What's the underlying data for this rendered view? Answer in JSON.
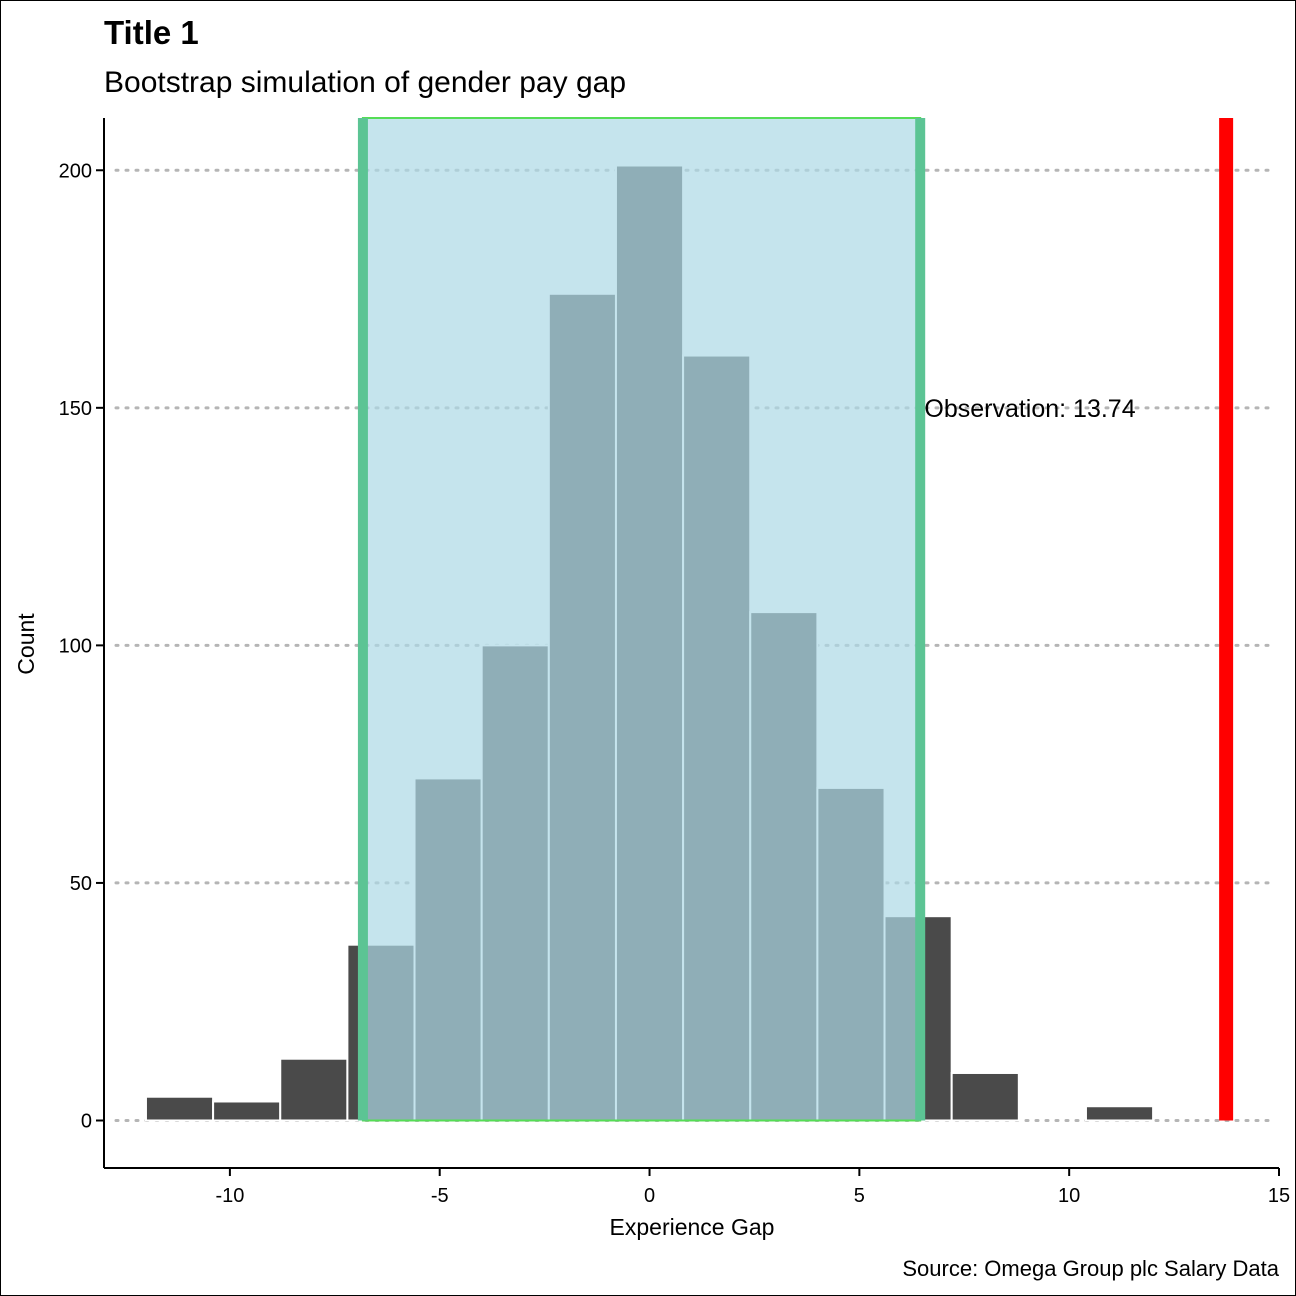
{
  "chart_data": {
    "type": "bar",
    "title": "Title 1",
    "subtitle": "Bootstrap simulation of gender pay gap",
    "xlabel": "Experience Gap",
    "ylabel": "Count",
    "caption": "Source: Omega Group plc Salary Data",
    "xlim": [
      -13.0,
      15.0
    ],
    "ylim": [
      -10,
      211
    ],
    "x_ticks": [
      -10,
      -5,
      0,
      5,
      10,
      15
    ],
    "x_tick_labels": [
      "-10",
      "-5",
      "0",
      "5",
      "10",
      "15"
    ],
    "y_ticks": [
      0,
      50,
      100,
      150,
      200
    ],
    "y_tick_labels": [
      "0",
      "50",
      "100",
      "150",
      "200"
    ],
    "grid": "horizontal dotted",
    "bin_width": 1.6,
    "bins": [
      {
        "center": -11.2,
        "count": 5
      },
      {
        "center": -9.6,
        "count": 4
      },
      {
        "center": -8.0,
        "count": 13
      },
      {
        "center": -6.4,
        "count": 37
      },
      {
        "center": -4.8,
        "count": 72
      },
      {
        "center": -3.2,
        "count": 100
      },
      {
        "center": -1.6,
        "count": 174
      },
      {
        "center": 0.0,
        "count": 201
      },
      {
        "center": 1.6,
        "count": 161
      },
      {
        "center": 3.2,
        "count": 107
      },
      {
        "center": 4.8,
        "count": 70
      },
      {
        "center": 6.4,
        "count": 43
      },
      {
        "center": 8.0,
        "count": 10
      },
      {
        "center": 9.6,
        "count": 0
      },
      {
        "center": 11.2,
        "count": 3
      }
    ],
    "confidence_interval": [
      -6.83,
      6.45
    ],
    "observation": 13.74,
    "observation_label": "Observation:  13.74",
    "colors": {
      "bar": "#4a4a4a",
      "bar_outline": "#ffffff",
      "ci_fill": "#add8e6",
      "ci_fill_opacity": 0.7,
      "ci_edge": "#5cc494",
      "ci_baseline": "#55dd55",
      "observation_line": "#ff0000",
      "grid": "#b5b5b5"
    }
  }
}
